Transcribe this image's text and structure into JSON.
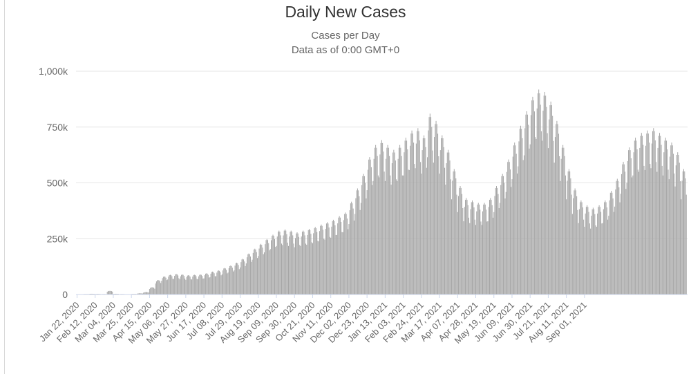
{
  "chart_data": {
    "type": "bar",
    "title": "Daily New Cases",
    "subtitle": "Cases per Day",
    "subtitle2": "Data as of 0:00 GMT+0",
    "ylabel": "",
    "xlabel": "",
    "ylim": [
      0,
      1000000
    ],
    "yticks": [
      {
        "value": 0,
        "label": "0"
      },
      {
        "value": 250000,
        "label": "250k"
      },
      {
        "value": 500000,
        "label": "500k"
      },
      {
        "value": 750000,
        "label": "750k"
      },
      {
        "value": 1000000,
        "label": "1,000k"
      }
    ],
    "x_tick_labels": [
      "Jan 22, 2020",
      "Feb 12, 2020",
      "Mar 04, 2020",
      "Mar 25, 2020",
      "Apr 15, 2020",
      "May 06, 2020",
      "May 27, 2020",
      "Jun 17, 2020",
      "Jul 08, 2020",
      "Jul 29, 2020",
      "Aug 19, 2020",
      "Sep 09, 2020",
      "Sep 30, 2020",
      "Oct 21, 2020",
      "Nov 11, 2020",
      "Dec 02, 2020",
      "Dec 23, 2020",
      "Jan 13, 2021",
      "Feb 03, 2021",
      "Feb 24, 2021",
      "Mar 17, 2021",
      "Apr 07, 2021",
      "Apr 28, 2021",
      "May 19, 2021",
      "Jun 09, 2021",
      "Jun 30, 2021",
      "Jul 21, 2021",
      "Aug 11, 2021",
      "Sep 01, 2021"
    ],
    "bar_color": "#a6a6a6",
    "grid": true,
    "series": [
      {
        "name": "Daily New Cases",
        "start_date": "Jan 22, 2020",
        "weekly_values": [
          500,
          2000,
          3000,
          2500,
          2000,
          15000,
          3000,
          2000,
          1500,
          2500,
          5000,
          10000,
          30000,
          60000,
          75000,
          82000,
          85000,
          83000,
          80000,
          82000,
          83000,
          88000,
          95000,
          100000,
          110000,
          120000,
          132000,
          148000,
          170000,
          190000,
          210000,
          230000,
          248000,
          265000,
          270000,
          265000,
          258000,
          265000,
          272000,
          280000,
          290000,
          300000,
          310000,
          325000,
          340000,
          385000,
          440000,
          500000,
          570000,
          620000,
          640000,
          620000,
          600000,
          620000,
          650000,
          680000,
          690000,
          660000,
          750000,
          720000,
          660000,
          600000,
          520000,
          450000,
          400000,
          390000,
          380000,
          380000,
          400000,
          450000,
          500000,
          560000,
          630000,
          700000,
          760000,
          820000,
          850000,
          840000,
          800000,
          720000,
          620000,
          520000,
          440000,
          390000,
          370000,
          360000,
          370000,
          390000,
          430000,
          480000,
          550000,
          610000,
          650000,
          670000,
          680000,
          690000,
          670000,
          650000,
          630000,
          590000,
          520000
        ]
      }
    ]
  }
}
